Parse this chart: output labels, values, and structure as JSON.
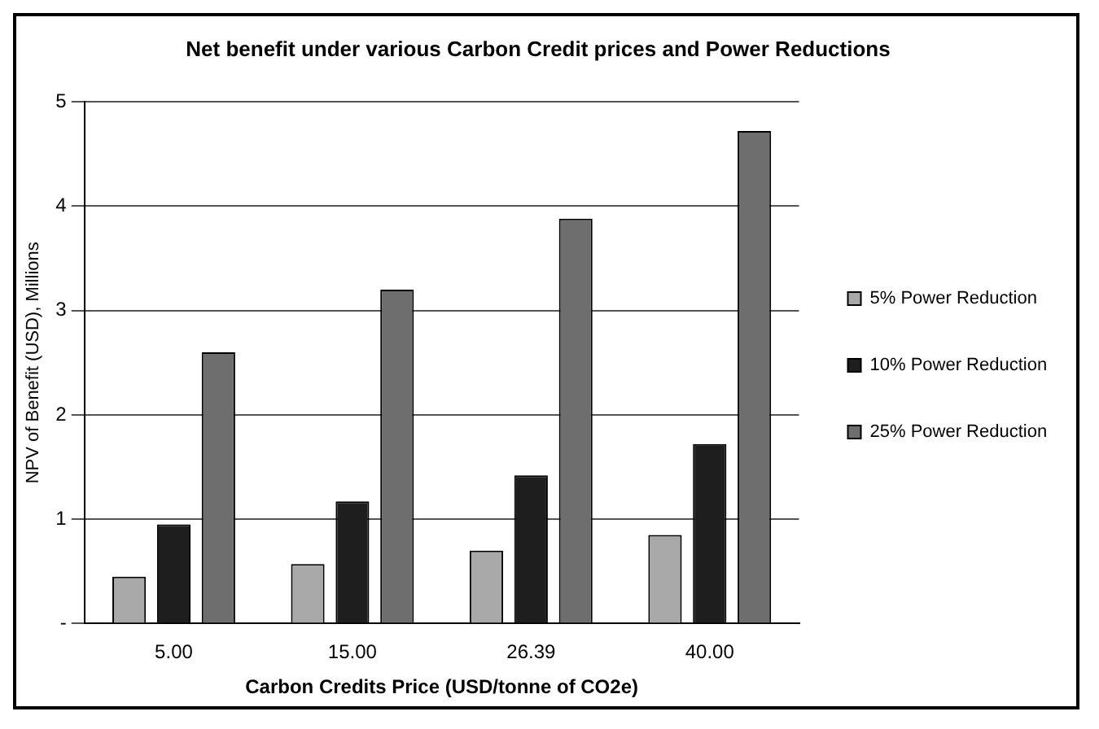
{
  "chart_data": {
    "type": "bar",
    "title": "Net benefit under various Carbon Credit prices and Power Reductions",
    "xlabel": "Carbon Credits Price (USD/tonne of CO2e)",
    "ylabel": "NPV of Benefit (USD), Millions",
    "categories": [
      "5.00",
      "15.00",
      "26.39",
      "40.00"
    ],
    "series": [
      {
        "name": "5% Power Reduction",
        "color": "#a8a8a8",
        "values": [
          0.45,
          0.57,
          0.7,
          0.85
        ]
      },
      {
        "name": "10% Power Reduction",
        "color": "#1e1e1e",
        "values": [
          0.95,
          1.17,
          1.42,
          1.72
        ]
      },
      {
        "name": "25% Power Reduction",
        "color": "#6e6e6e",
        "values": [
          2.6,
          3.2,
          3.88,
          4.72
        ]
      }
    ],
    "ylim": [
      0,
      5
    ],
    "yticks": [
      {
        "value": 0,
        "label": "-"
      },
      1,
      2,
      3,
      4,
      5
    ],
    "grid": "y",
    "legend": "right"
  }
}
